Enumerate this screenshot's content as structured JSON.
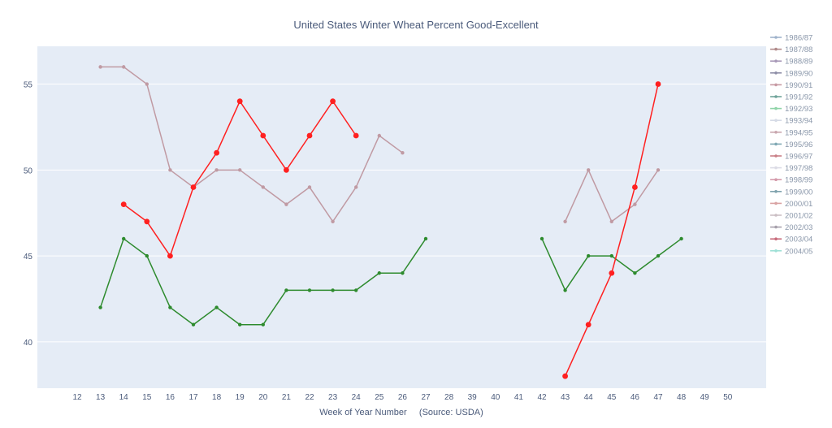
{
  "chart_data": {
    "type": "line",
    "title": "United States Winter Wheat Percent Good-Excellent",
    "xlabel": "Week of Year Number     (Source: USDA)",
    "ylabel": "",
    "categories": [
      "12",
      "13",
      "14",
      "15",
      "16",
      "17",
      "18",
      "19",
      "20",
      "21",
      "22",
      "23",
      "24",
      "25",
      "26",
      "27",
      "28",
      "39",
      "40",
      "41",
      "42",
      "43",
      "44",
      "45",
      "46",
      "47",
      "48",
      "49",
      "50"
    ],
    "yticks": [
      40,
      45,
      50,
      55
    ],
    "ylim": [
      37.3,
      57.2
    ],
    "grid": true,
    "legend_position": "right",
    "legend": [
      {
        "name": "1986/87",
        "color": "#9fb3cc"
      },
      {
        "name": "1987/88",
        "color": "#b08a8a"
      },
      {
        "name": "1988/89",
        "color": "#a899b8"
      },
      {
        "name": "1989/90",
        "color": "#8f8fa8"
      },
      {
        "name": "1990/91",
        "color": "#c79aa3"
      },
      {
        "name": "1991/92",
        "color": "#6fa39a"
      },
      {
        "name": "1992/93",
        "color": "#8fd4a8"
      },
      {
        "name": "1993/94",
        "color": "#d6dbe6"
      },
      {
        "name": "1994/95",
        "color": "#c9a6ae"
      },
      {
        "name": "1995/96",
        "color": "#7fa8b3"
      },
      {
        "name": "1996/97",
        "color": "#c97f86"
      },
      {
        "name": "1997/98",
        "color": "#dcdce6"
      },
      {
        "name": "1998/99",
        "color": "#d49aaa"
      },
      {
        "name": "1999/00",
        "color": "#7fa2ad"
      },
      {
        "name": "2000/01",
        "color": "#d9a3a3"
      },
      {
        "name": "2001/02",
        "color": "#cbbfc4"
      },
      {
        "name": "2002/03",
        "color": "#a6a0ab"
      },
      {
        "name": "2003/04",
        "color": "#c86c7c"
      },
      {
        "name": "2004/05",
        "color": "#9ee0d6"
      }
    ],
    "series": [
      {
        "color": "#c09aa3",
        "marker_size": 2.2,
        "segments": [
          {
            "x": [
              "13",
              "14",
              "15",
              "16",
              "17",
              "18",
              "19",
              "20",
              "21",
              "22",
              "23",
              "24",
              "25",
              "26"
            ],
            "y": [
              56,
              56,
              55,
              50,
              49,
              50,
              50,
              49,
              48,
              49,
              47,
              49,
              52,
              51
            ]
          },
          {
            "x": [
              "43",
              "44",
              "45",
              "46",
              "47"
            ],
            "y": [
              47,
              50,
              47,
              48,
              50
            ]
          }
        ]
      },
      {
        "color": "#2e8b2e",
        "marker_size": 2.2,
        "segments": [
          {
            "x": [
              "13",
              "14",
              "15",
              "16",
              "17",
              "18",
              "19",
              "20",
              "21",
              "22",
              "23",
              "24",
              "25",
              "26",
              "27"
            ],
            "y": [
              42,
              46,
              45,
              42,
              41,
              42,
              41,
              41,
              43,
              43,
              43,
              43,
              44,
              44,
              46
            ]
          },
          {
            "x": [
              "42",
              "43",
              "44",
              "45",
              "46",
              "47",
              "48"
            ],
            "y": [
              46,
              43,
              45,
              45,
              44,
              45,
              46
            ]
          }
        ]
      },
      {
        "color": "#ff2020",
        "marker_size": 3.4,
        "segments": [
          {
            "x": [
              "14",
              "15",
              "16",
              "17",
              "18",
              "19",
              "20",
              "21",
              "22",
              "23",
              "24"
            ],
            "y": [
              48,
              47,
              45,
              49,
              51,
              54,
              52,
              50,
              52,
              54,
              52
            ]
          },
          {
            "x": [
              "43",
              "44",
              "45",
              "46",
              "47"
            ],
            "y": [
              38,
              41,
              44,
              49,
              55
            ]
          }
        ]
      }
    ]
  }
}
